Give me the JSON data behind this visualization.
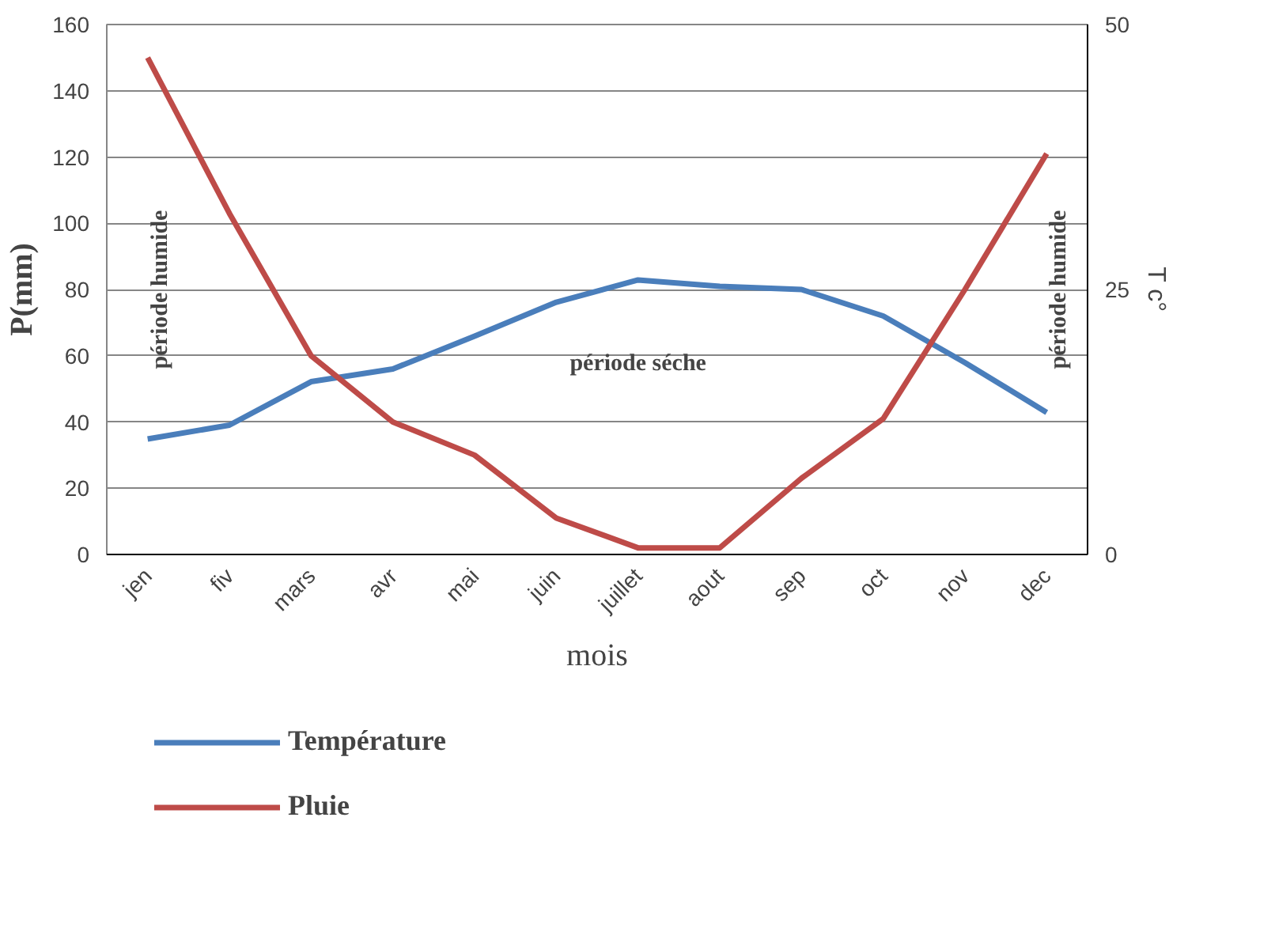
{
  "chart_data": {
    "type": "line",
    "xlabel": "mois",
    "ylabel": "P(mm)",
    "y2label": "T c°",
    "categories": [
      "jen",
      "fiv",
      "mars",
      "avr",
      "mai",
      "juin",
      "juillet",
      "aout",
      "sep",
      "oct",
      "nov",
      "dec"
    ],
    "series": [
      {
        "name": "Température",
        "color": "#4a7ebb",
        "axis": "y2",
        "values": [
          10.9,
          12.2,
          16.3,
          17.5,
          20.6,
          23.8,
          25.9,
          25.3,
          25,
          22.5,
          18.1,
          13.4
        ]
      },
      {
        "name": "Pluie",
        "color": "#be4b48",
        "values": [
          150,
          103,
          60,
          40,
          30,
          11,
          2,
          2,
          23,
          41,
          80,
          121
        ]
      }
    ],
    "ylim": [
      0,
      160
    ],
    "yticks": [
      0,
      20,
      40,
      60,
      80,
      100,
      120,
      140,
      160
    ],
    "y2lim": [
      0,
      50
    ],
    "y2ticks": [
      0,
      25,
      50
    ],
    "grid": "y",
    "legend": "bottom",
    "annotations": [
      "période humide",
      "période séche",
      "période humide"
    ]
  }
}
